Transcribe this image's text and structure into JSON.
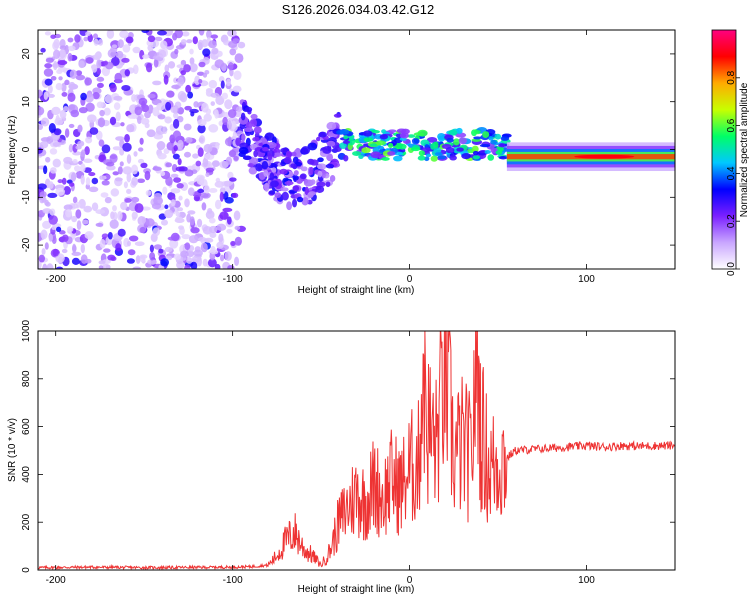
{
  "title": "S126.2026.034.03.42.G12",
  "chart_data": [
    {
      "type": "heatmap",
      "xlabel": "Height of straight line (km)",
      "ylabel": "Frequency (Hz)",
      "xlim": [
        -210,
        150
      ],
      "ylim": [
        -25,
        25
      ],
      "xticks": [
        -200,
        -100,
        0,
        100
      ],
      "yticks": [
        -20,
        -10,
        0,
        10,
        20
      ],
      "colorbar": {
        "label": "Normalized spectral amplitude",
        "range": [
          0,
          1
        ],
        "ticks": [
          "0.0",
          "0.2",
          "0.4",
          "0.6",
          "0.8"
        ],
        "colors": [
          "#ffffff",
          "#c9a6ff",
          "#7a20ff",
          "#0000ff",
          "#00c8ff",
          "#00ff66",
          "#c8ff00",
          "#ffaa00",
          "#ff0000",
          "#ff0080"
        ]
      },
      "regions": [
        {
          "x_range": [
            -210,
            -95
          ],
          "freq_range": [
            -25,
            25
          ],
          "description_level": 0.15
        },
        {
          "x_range": [
            -95,
            -40
          ],
          "freq_center": [
            5,
            -6
          ],
          "level": 0.2
        },
        {
          "x_range": [
            -40,
            55
          ],
          "freq_center": 1,
          "level": 0.5
        },
        {
          "x_range": [
            55,
            150
          ],
          "freq_center": -1.5,
          "level": 0.85
        }
      ]
    },
    {
      "type": "line",
      "xlabel": "Height of straight line (km)",
      "ylabel": "SNR (10 * v/v)",
      "xlim": [
        -210,
        150
      ],
      "ylim": [
        0,
        1000
      ],
      "xticks": [
        -200,
        -100,
        0,
        100
      ],
      "yticks": [
        0,
        200,
        400,
        600,
        800,
        1000
      ],
      "color": "#ee3333",
      "series": [
        {
          "name": "",
          "x": [
            -210,
            -180,
            -150,
            -120,
            -100,
            -90,
            -80,
            -75,
            -70,
            -65,
            -60,
            -55,
            -50,
            -45,
            -40,
            -35,
            -30,
            -25,
            -20,
            -15,
            -10,
            -5,
            0,
            5,
            8,
            10,
            15,
            20,
            25,
            30,
            35,
            38,
            40,
            45,
            50,
            55,
            60,
            70,
            80,
            90,
            100,
            110,
            120,
            130,
            140,
            150
          ],
          "values": [
            10,
            12,
            10,
            11,
            12,
            14,
            20,
            60,
            120,
            160,
            90,
            60,
            20,
            80,
            200,
            260,
            320,
            280,
            360,
            300,
            380,
            340,
            420,
            450,
            900,
            600,
            520,
            880,
            480,
            520,
            460,
            1000,
            600,
            420,
            450,
            470,
            500,
            505,
            510,
            515,
            520,
            515,
            520,
            518,
            520,
            520
          ]
        }
      ]
    }
  ]
}
